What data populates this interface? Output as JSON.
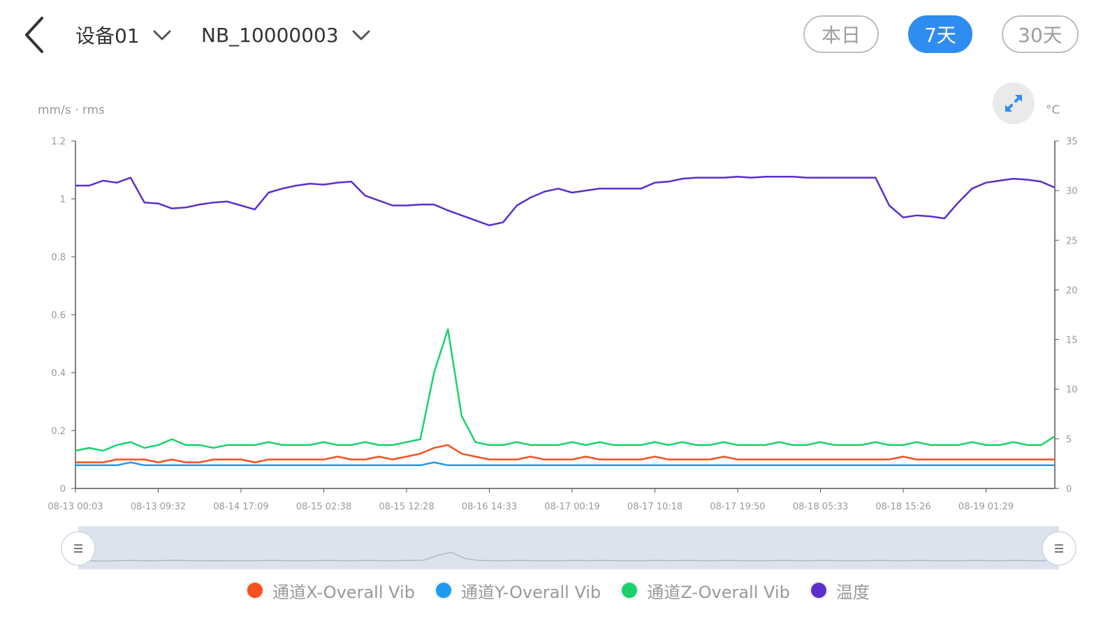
{
  "header": {
    "device_label": "设备01",
    "sensor_label": "NB_10000003",
    "range_buttons": [
      "本日",
      "7天",
      "30天"
    ],
    "active_range": "7天"
  },
  "icons": {
    "back": "chevron-left-icon",
    "dropdown": "chevron-down-icon",
    "expand": "expand-diagonal-icon",
    "slider_handle": "drag-handle-icon"
  },
  "chart_data": {
    "type": "line",
    "left_axis_unit": "mm/s · rms",
    "right_axis_unit": "°C",
    "ylim_left": [
      0,
      1.2
    ],
    "ylim_right": [
      0,
      35
    ],
    "y_ticks_left": [
      "0",
      "0.2",
      "0.4",
      "0.6",
      "0.8",
      "1",
      "1.2"
    ],
    "y_ticks_right": [
      "0",
      "5",
      "10",
      "15",
      "20",
      "25",
      "30",
      "35"
    ],
    "x_ticks": [
      "08-13 00:03",
      "08-13 09:32",
      "08-14 17:09",
      "08-15 02:38",
      "08-15 12:28",
      "08-16 14:33",
      "08-17 00:19",
      "08-17 10:18",
      "08-17 19:50",
      "08-18 05:33",
      "08-18 15:26",
      "08-19 01:29"
    ],
    "grid": false,
    "legend_position": "bottom",
    "colors": {
      "x": "#f4511e",
      "y": "#1e9bf0",
      "z": "#19d36a",
      "temp": "#5b2fc9"
    },
    "series": [
      {
        "name": "通道X-Overall Vib",
        "axis": "left",
        "color": "#f4511e",
        "values": [
          0.09,
          0.09,
          0.09,
          0.1,
          0.1,
          0.1,
          0.09,
          0.1,
          0.09,
          0.09,
          0.1,
          0.1,
          0.1,
          0.09,
          0.1,
          0.1,
          0.1,
          0.1,
          0.1,
          0.11,
          0.1,
          0.1,
          0.11,
          0.1,
          0.11,
          0.12,
          0.14,
          0.15,
          0.12,
          0.11,
          0.1,
          0.1,
          0.1,
          0.11,
          0.1,
          0.1,
          0.1,
          0.11,
          0.1,
          0.1,
          0.1,
          0.1,
          0.11,
          0.1,
          0.1,
          0.1,
          0.1,
          0.11,
          0.1,
          0.1,
          0.1,
          0.1,
          0.1,
          0.1,
          0.1,
          0.1,
          0.1,
          0.1,
          0.1,
          0.1,
          0.11,
          0.1,
          0.1,
          0.1,
          0.1,
          0.1,
          0.1,
          0.1,
          0.1,
          0.1,
          0.1,
          0.1
        ]
      },
      {
        "name": "通道Y-Overall Vib",
        "axis": "left",
        "color": "#1e9bf0",
        "values": [
          0.08,
          0.08,
          0.08,
          0.08,
          0.09,
          0.08,
          0.08,
          0.08,
          0.08,
          0.08,
          0.08,
          0.08,
          0.08,
          0.08,
          0.08,
          0.08,
          0.08,
          0.08,
          0.08,
          0.08,
          0.08,
          0.08,
          0.08,
          0.08,
          0.08,
          0.08,
          0.09,
          0.08,
          0.08,
          0.08,
          0.08,
          0.08,
          0.08,
          0.08,
          0.08,
          0.08,
          0.08,
          0.08,
          0.08,
          0.08,
          0.08,
          0.08,
          0.08,
          0.08,
          0.08,
          0.08,
          0.08,
          0.08,
          0.08,
          0.08,
          0.08,
          0.08,
          0.08,
          0.08,
          0.08,
          0.08,
          0.08,
          0.08,
          0.08,
          0.08,
          0.08,
          0.08,
          0.08,
          0.08,
          0.08,
          0.08,
          0.08,
          0.08,
          0.08,
          0.08,
          0.08,
          0.08
        ]
      },
      {
        "name": "通道Z-Overall Vib",
        "axis": "left",
        "color": "#19d36a",
        "values": [
          0.13,
          0.14,
          0.13,
          0.15,
          0.16,
          0.14,
          0.15,
          0.17,
          0.15,
          0.15,
          0.14,
          0.15,
          0.15,
          0.15,
          0.16,
          0.15,
          0.15,
          0.15,
          0.16,
          0.15,
          0.15,
          0.16,
          0.15,
          0.15,
          0.16,
          0.17,
          0.4,
          0.55,
          0.25,
          0.16,
          0.15,
          0.15,
          0.16,
          0.15,
          0.15,
          0.15,
          0.16,
          0.15,
          0.16,
          0.15,
          0.15,
          0.15,
          0.16,
          0.15,
          0.16,
          0.15,
          0.15,
          0.16,
          0.15,
          0.15,
          0.15,
          0.16,
          0.15,
          0.15,
          0.16,
          0.15,
          0.15,
          0.15,
          0.16,
          0.15,
          0.15,
          0.16,
          0.15,
          0.15,
          0.15,
          0.16,
          0.15,
          0.15,
          0.16,
          0.15,
          0.15,
          0.18
        ]
      },
      {
        "name": "温度",
        "axis": "right",
        "color": "#5b2fc9",
        "values": [
          30.5,
          30.5,
          31.0,
          30.8,
          31.3,
          28.8,
          28.7,
          28.2,
          28.3,
          28.6,
          28.8,
          28.9,
          28.5,
          28.1,
          29.8,
          30.2,
          30.5,
          30.7,
          30.6,
          30.8,
          30.9,
          29.5,
          29.0,
          28.5,
          28.5,
          28.6,
          28.6,
          28.0,
          27.5,
          27.0,
          26.5,
          26.8,
          28.5,
          29.3,
          29.9,
          30.2,
          29.8,
          30.0,
          30.2,
          30.2,
          30.2,
          30.2,
          30.8,
          30.9,
          31.2,
          31.3,
          31.3,
          31.3,
          31.4,
          31.3,
          31.4,
          31.4,
          31.4,
          31.3,
          31.3,
          31.3,
          31.3,
          31.3,
          31.3,
          28.5,
          27.3,
          27.5,
          27.4,
          27.2,
          28.8,
          30.2,
          30.8,
          31.0,
          31.2,
          31.1,
          30.9,
          30.3
        ]
      }
    ]
  },
  "zoom": {
    "start_percent": 0,
    "end_percent": 100
  },
  "legend": {
    "items": [
      "通道X-Overall Vib",
      "通道Y-Overall Vib",
      "通道Z-Overall Vib",
      "温度"
    ]
  }
}
